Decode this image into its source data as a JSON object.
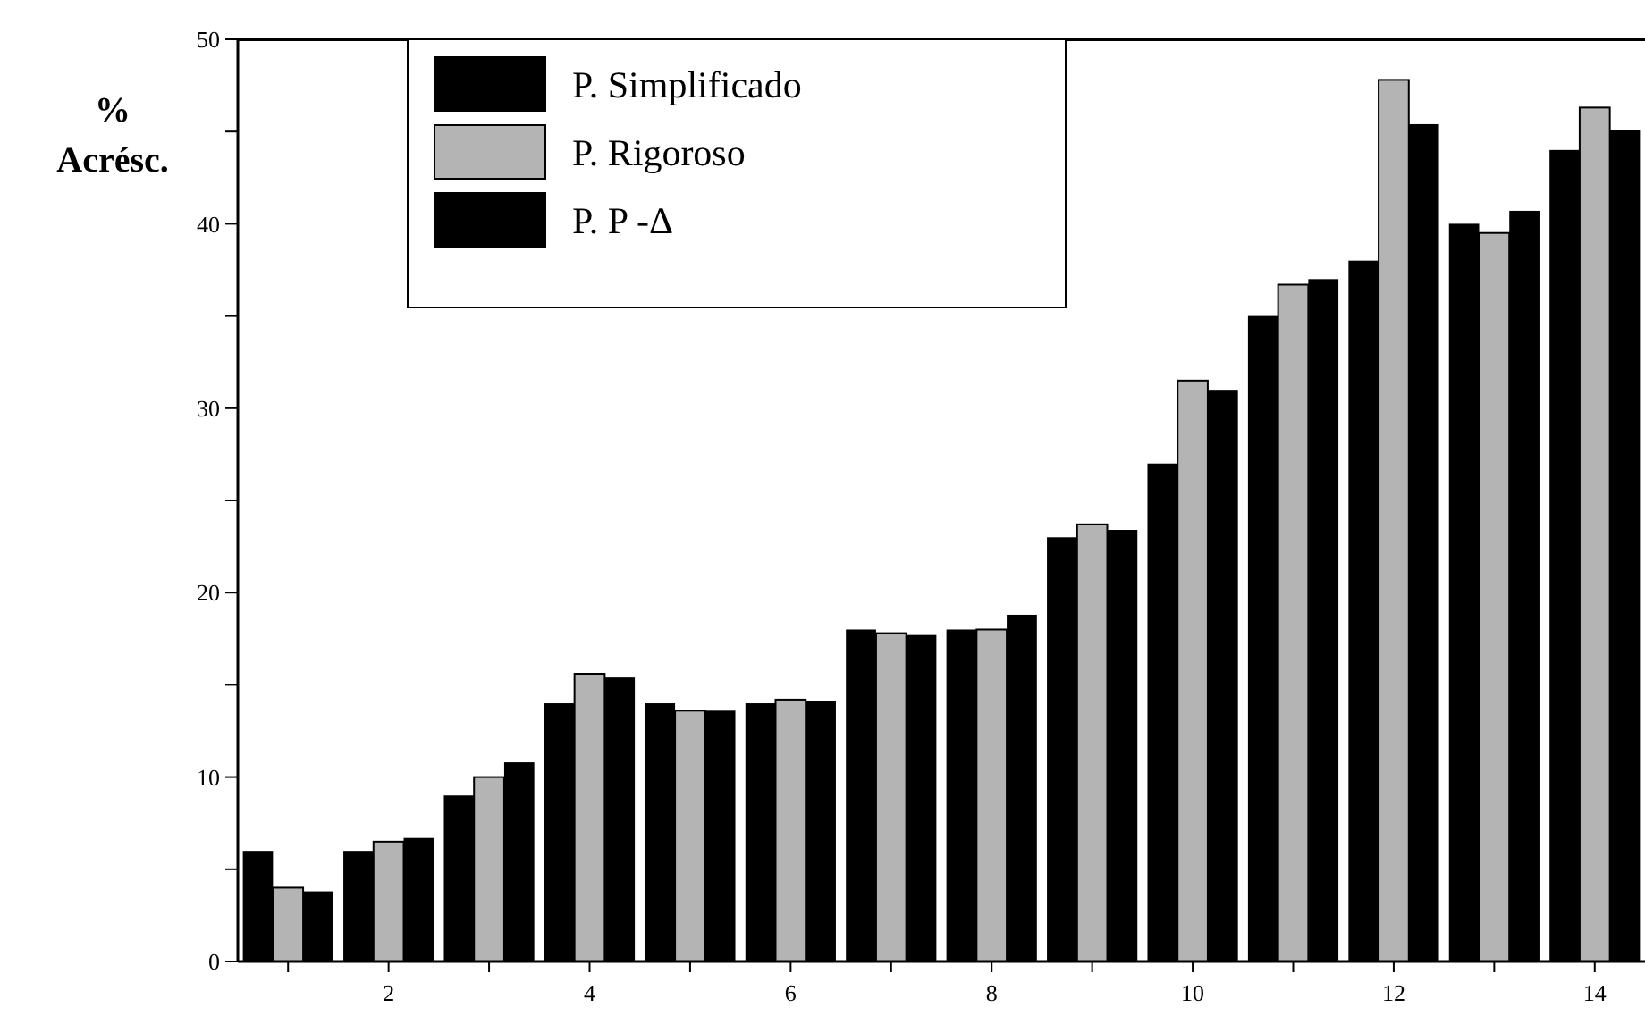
{
  "chart_data": {
    "type": "bar",
    "ylabel": "%\nAcrésc.",
    "categories": [
      null,
      "2",
      null,
      "4",
      null,
      "6",
      null,
      "8",
      null,
      "10",
      null,
      "12",
      null,
      "14"
    ],
    "series": [
      {
        "name": "P. Simplificado",
        "color": "#000000",
        "values": [
          6,
          6,
          9,
          14,
          14,
          14,
          18,
          18,
          23,
          27,
          35,
          38,
          40,
          44
        ]
      },
      {
        "name": "P. Rigoroso",
        "color": "#b4b4b4",
        "values": [
          4,
          6.5,
          10,
          15.6,
          13.6,
          14.2,
          17.8,
          18,
          23.7,
          31.5,
          36.7,
          47.8,
          39.5,
          46.3
        ]
      },
      {
        "name": "P. P -Δ",
        "color": "#000000",
        "values": [
          3.8,
          6.7,
          10.8,
          15.4,
          13.6,
          14.1,
          17.7,
          18.8,
          23.4,
          31,
          37,
          45.4,
          40.7,
          45.1
        ]
      }
    ],
    "ylim": [
      0,
      50
    ],
    "yticks": [
      0,
      {
        "value": 5,
        "label": null
      },
      10,
      {
        "value": 15,
        "label": null
      },
      20,
      {
        "value": 25,
        "label": null
      },
      30,
      {
        "value": 35,
        "label": null
      },
      40,
      {
        "value": 45,
        "label": null
      },
      50
    ],
    "grid": false,
    "legend": "top left"
  }
}
